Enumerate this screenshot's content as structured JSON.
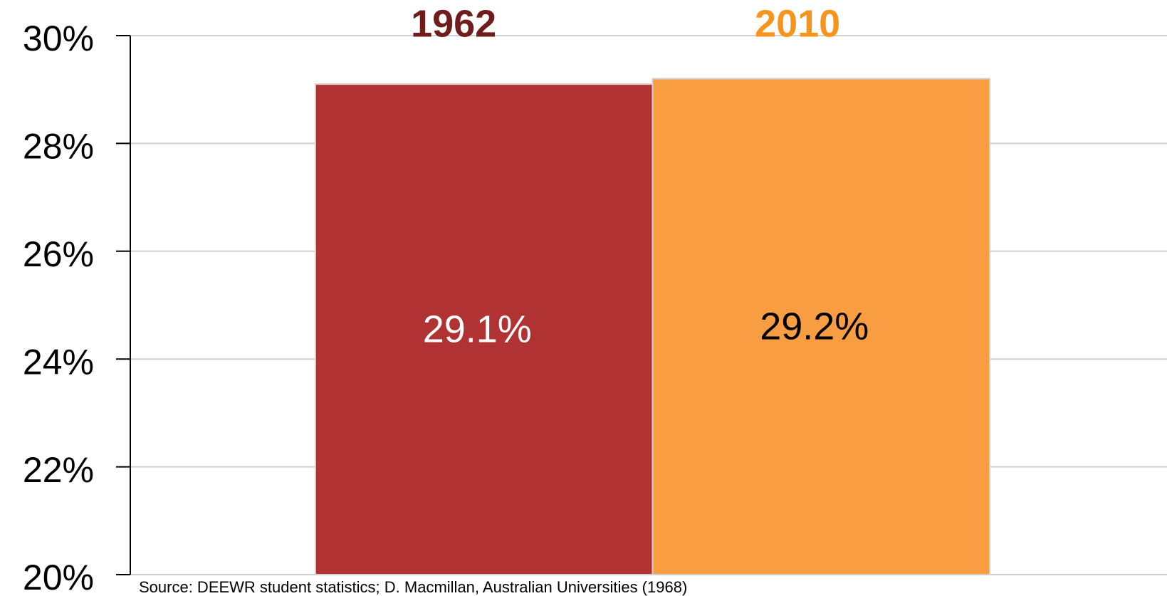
{
  "chart_data": {
    "type": "bar",
    "categories": [
      "1962",
      "2010"
    ],
    "values": [
      29.1,
      29.2
    ],
    "value_labels": [
      "29.1%",
      "29.2%"
    ],
    "colors": [
      "#b03232",
      "#f99d42"
    ],
    "category_label_colors": [
      "#6e1c1c",
      "#f7941d"
    ],
    "value_label_colors": [
      "#ffffff",
      "#000000"
    ],
    "ylim": [
      20,
      30
    ],
    "yticks": [
      {
        "value": 20,
        "label": "20%"
      },
      {
        "value": 22,
        "label": "22%"
      },
      {
        "value": 24,
        "label": "24%"
      },
      {
        "value": 26,
        "label": "26%"
      },
      {
        "value": 28,
        "label": "28%"
      },
      {
        "value": 30,
        "label": "30%"
      }
    ],
    "grid": true,
    "source": "Source: DEEWR student statistics; D. Macmillan, Australian Universities (1968)"
  }
}
